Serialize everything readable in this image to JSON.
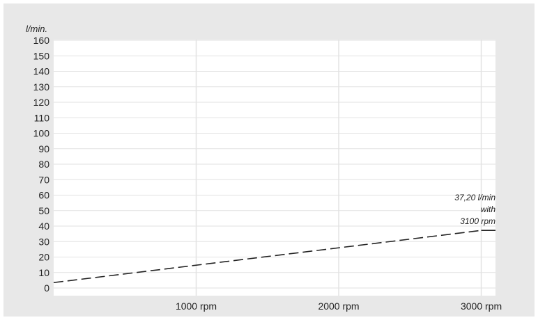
{
  "chart_data": {
    "type": "line",
    "title": "",
    "ylabel": "l/min.",
    "xlabel": "",
    "x_unit_suffix": " rpm",
    "xlim": [
      0,
      3100
    ],
    "ylim": [
      0,
      160
    ],
    "x_ticks": [
      1000,
      2000,
      3000
    ],
    "x_tick_labels": [
      "1000 rpm",
      "2000 rpm",
      "3000 rpm"
    ],
    "y_ticks": [
      0,
      10,
      20,
      30,
      40,
      50,
      60,
      70,
      80,
      90,
      100,
      110,
      120,
      130,
      140,
      150,
      160
    ],
    "grid": true,
    "series": [
      {
        "style": "dashed",
        "color": "#222222",
        "x": [
          0,
          3000
        ],
        "y": [
          3.5,
          37.2
        ]
      },
      {
        "style": "solid",
        "color": "#222222",
        "x": [
          3000,
          3100
        ],
        "y": [
          37.2,
          37.2
        ]
      }
    ],
    "annotation": {
      "lines": [
        "37,20 l/min",
        "with",
        "3100 rpm"
      ]
    }
  }
}
